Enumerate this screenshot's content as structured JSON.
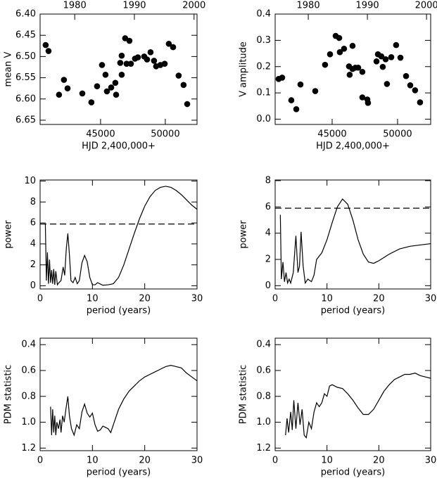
{
  "chart_data": [
    {
      "type": "scatter",
      "xlabel": "HJD 2,400,000+",
      "ylabel": "mean V",
      "color": "#000000",
      "y_inverted": true,
      "x": [
        40760,
        40980,
        41790,
        42170,
        42450,
        43590,
        44290,
        44730,
        45110,
        45380,
        45490,
        45820,
        46140,
        46200,
        46520,
        46630,
        46630,
        46900,
        47010,
        47230,
        47340,
        47660,
        47880,
        48370,
        48590,
        48860,
        49130,
        49290,
        49620,
        49950,
        50270,
        50600,
        51030,
        51410,
        51690
      ],
      "values": [
        6.473,
        6.487,
        6.59,
        6.555,
        6.575,
        6.587,
        6.608,
        6.57,
        6.52,
        6.543,
        6.582,
        6.573,
        6.562,
        6.59,
        6.515,
        6.498,
        6.543,
        6.457,
        6.517,
        6.463,
        6.517,
        6.505,
        6.502,
        6.5,
        6.507,
        6.49,
        6.51,
        6.523,
        6.52,
        6.517,
        6.47,
        6.478,
        6.545,
        6.567,
        6.612
      ],
      "xlim": [
        40330,
        52450
      ],
      "xticks": [
        45000,
        50000
      ],
      "x2lim": [
        1974.2,
        2000.5
      ],
      "x2ticks": [
        1980,
        1990,
        2000
      ],
      "ylim": [
        6.4,
        6.66
      ],
      "yticks": [
        {
          "value": 6.4,
          "label": "6.40"
        },
        6.45,
        {
          "value": 6.5,
          "label": "6.50"
        },
        6.55,
        {
          "value": 6.6,
          "label": "6.60"
        },
        6.65
      ]
    },
    {
      "type": "scatter",
      "xlabel": "HJD 2,400,000+",
      "ylabel": "V amplitude",
      "color": "#000000",
      "x": [
        40910,
        41180,
        41880,
        42260,
        42580,
        43710,
        44460,
        44840,
        45270,
        45540,
        45590,
        45910,
        46290,
        46340,
        46560,
        46560,
        46770,
        46990,
        47310,
        47310,
        47690,
        47740,
        48390,
        48500,
        48760,
        48870,
        49090,
        49190,
        49520,
        49890,
        50220,
        50650,
        50970,
        51340,
        51720
      ],
      "values": [
        0.153,
        0.158,
        0.072,
        0.038,
        0.132,
        0.107,
        0.207,
        0.247,
        0.317,
        0.309,
        0.255,
        0.268,
        0.201,
        0.169,
        0.279,
        0.191,
        0.196,
        0.196,
        0.18,
        0.083,
        0.075,
        0.062,
        0.22,
        0.247,
        0.239,
        0.199,
        0.228,
        0.134,
        0.236,
        0.282,
        0.234,
        0.164,
        0.129,
        0.11,
        0.064
      ],
      "xlim": [
        40645,
        52530
      ],
      "xticks": [
        45000,
        50000
      ],
      "x2lim": [
        1974.4,
        2000.7
      ],
      "x2ticks": [
        1980,
        1990,
        2000
      ],
      "ylim": [
        -0.02,
        0.4
      ],
      "yticks": [
        {
          "value": 0,
          "label": "0.0"
        },
        0.1,
        0.2,
        0.3,
        0.4
      ]
    },
    {
      "type": "line",
      "xlabel": "period (years)",
      "ylabel": "power",
      "color": "#000000",
      "reference_line": 5.9,
      "x": [
        1.0,
        1.2,
        1.4,
        1.6,
        1.8,
        2.0,
        2.2,
        2.4,
        2.6,
        2.8,
        3.0,
        3.3,
        3.6,
        4.0,
        4.4,
        4.7,
        5.0,
        5.3,
        5.6,
        5.9,
        6.3,
        6.7,
        7.1,
        7.5,
        8.0,
        8.5,
        9.0,
        9.5,
        10,
        10.5,
        11,
        12,
        13,
        14,
        15,
        16,
        17,
        18,
        19,
        20,
        21,
        22,
        23,
        24,
        25,
        26,
        27,
        28,
        29,
        30
      ],
      "values": [
        5.9,
        0.5,
        3.2,
        0.2,
        2.5,
        0.3,
        1.5,
        0.2,
        1.6,
        0.1,
        1.4,
        0.1,
        0.3,
        0.5,
        1.8,
        1.0,
        3.5,
        5.0,
        3.0,
        0.5,
        0.3,
        0.8,
        0.2,
        0.5,
        2.2,
        2.9,
        2.3,
        0.8,
        0.1,
        0.1,
        0.3,
        0.05,
        0.1,
        0.2,
        0.8,
        2.0,
        3.5,
        5.0,
        6.4,
        7.6,
        8.5,
        9.1,
        9.4,
        9.5,
        9.4,
        9.1,
        8.7,
        8.2,
        7.7,
        7.3
      ],
      "xlim": [
        0,
        30
      ],
      "xticks": [
        0,
        10,
        20,
        30
      ],
      "ylim": [
        -0.3,
        10.1
      ],
      "yticks": [
        0,
        2,
        4,
        6,
        8,
        10
      ]
    },
    {
      "type": "line",
      "xlabel": "period (years)",
      "ylabel": "power",
      "color": "#000000",
      "reference_line": 5.9,
      "x": [
        1.0,
        1.2,
        1.5,
        1.8,
        2.1,
        2.4,
        2.7,
        3.0,
        3.5,
        4.0,
        4.4,
        4.7,
        5.0,
        5.4,
        5.8,
        6.3,
        7.0,
        7.5,
        8.0,
        9.0,
        10,
        11,
        12,
        13,
        14,
        15,
        16,
        17,
        18,
        19,
        20,
        22,
        24,
        26,
        28,
        30
      ],
      "values": [
        5.4,
        0.5,
        1.8,
        0.3,
        1.0,
        0.2,
        0.5,
        0.2,
        1.0,
        3.8,
        1.0,
        1.5,
        4.1,
        1.5,
        0.2,
        0.5,
        0.3,
        0.8,
        2.0,
        2.5,
        3.5,
        4.8,
        6.0,
        6.6,
        6.2,
        5.0,
        3.5,
        2.4,
        1.8,
        1.7,
        1.9,
        2.4,
        2.8,
        3.0,
        3.1,
        3.2
      ],
      "xlim": [
        0,
        30
      ],
      "xticks": [
        0,
        10,
        20,
        30
      ],
      "ylim": [
        -0.25,
        8.05
      ],
      "yticks": [
        0,
        2,
        4,
        6,
        8
      ]
    },
    {
      "type": "line",
      "xlabel": "period (years)",
      "ylabel": "PDM statistic",
      "color": "#000000",
      "y_inverted": true,
      "x": [
        2.0,
        2.2,
        2.4,
        2.6,
        2.8,
        3.0,
        3.2,
        3.5,
        3.8,
        4.0,
        4.3,
        4.6,
        5.0,
        5.3,
        5.6,
        6.0,
        6.5,
        7.0,
        7.5,
        8.0,
        8.5,
        9.0,
        9.5,
        10,
        10.5,
        11,
        11.5,
        12,
        13,
        13.5,
        14,
        15,
        16,
        17,
        18,
        19,
        20,
        21,
        22,
        23,
        24,
        25,
        26,
        27,
        28,
        29,
        30
      ],
      "values": [
        0.88,
        1.1,
        0.9,
        1.08,
        0.95,
        1.1,
        1.0,
        1.05,
        0.98,
        1.08,
        0.95,
        1.0,
        0.88,
        0.8,
        0.95,
        1.05,
        1.1,
        1.02,
        1.05,
        0.92,
        0.86,
        0.93,
        0.96,
        0.93,
        1.02,
        1.07,
        1.06,
        1.03,
        1.05,
        1.08,
        1.02,
        0.9,
        0.82,
        0.76,
        0.72,
        0.68,
        0.65,
        0.63,
        0.61,
        0.59,
        0.57,
        0.56,
        0.57,
        0.58,
        0.62,
        0.65,
        0.68
      ],
      "xlim": [
        0,
        30
      ],
      "xticks": [
        0,
        10,
        20,
        30
      ],
      "ylim": [
        0.35,
        1.22
      ],
      "yticks": [
        0.4,
        0.6,
        0.8,
        {
          "value": 1,
          "label": "1.0"
        },
        1.2
      ]
    },
    {
      "type": "line",
      "xlabel": "period (years)",
      "ylabel": "PDM statistic",
      "color": "#000000",
      "y_inverted": true,
      "x": [
        2.0,
        2.3,
        2.6,
        3.0,
        3.3,
        3.6,
        4.0,
        4.4,
        4.8,
        5.2,
        5.6,
        6.0,
        6.5,
        7.0,
        7.5,
        8.0,
        8.5,
        9.0,
        9.5,
        10,
        10.5,
        11,
        12,
        13,
        14,
        15,
        16,
        17,
        18,
        19,
        20,
        21,
        22,
        23,
        24,
        25,
        26,
        27,
        28,
        29,
        30
      ],
      "values": [
        1.1,
        0.97,
        1.08,
        0.92,
        1.06,
        0.83,
        1.05,
        0.85,
        1.02,
        0.9,
        1.1,
        1.12,
        1.0,
        1.05,
        0.92,
        0.85,
        0.88,
        0.85,
        0.78,
        0.8,
        0.72,
        0.71,
        0.73,
        0.74,
        0.78,
        0.83,
        0.89,
        0.94,
        0.94,
        0.9,
        0.83,
        0.76,
        0.71,
        0.67,
        0.65,
        0.63,
        0.63,
        0.62,
        0.64,
        0.65,
        0.66
      ],
      "xlim": [
        0,
        30
      ],
      "xticks": [
        0,
        10,
        20,
        30
      ],
      "ylim": [
        0.35,
        1.22
      ],
      "yticks": [
        0.4,
        0.6,
        0.8,
        {
          "value": 1,
          "label": "1.0"
        },
        1.2
      ]
    }
  ]
}
